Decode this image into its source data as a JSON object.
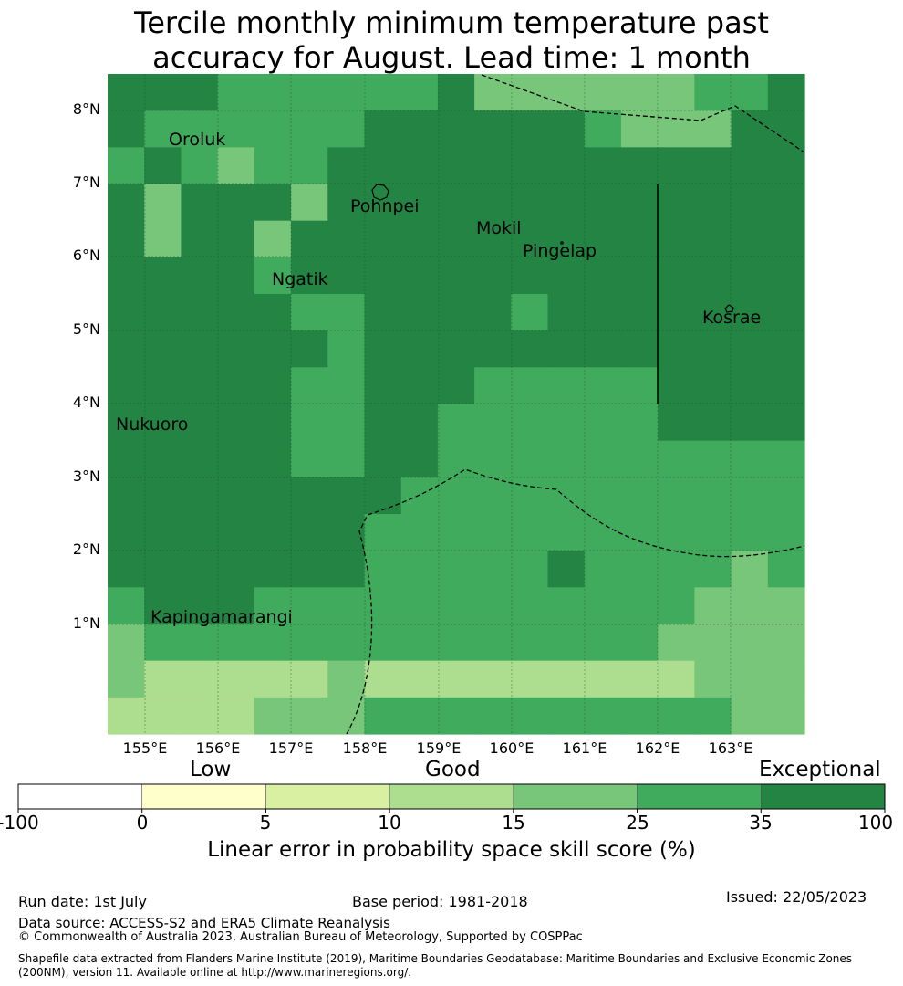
{
  "title": {
    "line1": "Tercile monthly minimum temperature past",
    "line2": "accuracy for August. Lead time: 1 month"
  },
  "map": {
    "lat_labels": [
      "8°N",
      "7°N",
      "6°N",
      "5°N",
      "4°N",
      "3°N",
      "2°N",
      "1°N"
    ],
    "lon_labels": [
      "155°E",
      "156°E",
      "157°E",
      "158°E",
      "159°E",
      "160°E",
      "161°E",
      "162°E",
      "163°E"
    ],
    "places": {
      "oroluk": "Oroluk",
      "pohnpei": "Pohnpei",
      "mokil": "Mokil",
      "pingelap": "Pingelap",
      "ngatik": "Ngatik",
      "kosrae": "Kosrae",
      "nukuoro": "Nukuoro",
      "kapingamarangi": "Kapingamarangi"
    },
    "grid": {
      "columns": 19,
      "rows": 18,
      "class_values": [
        "aaaccccccaddddddcca",
        "accccccaaaaaacdddaa",
        "bacdbbaaaaaaaaaaaaa",
        "adaaadaaaaaaaaaaaaa",
        "adaadaaaaaaaaaaaaaa",
        "aaaacaaaaaaaaaaaaaa",
        "aaaaaccaaaacaaaaaaa",
        "aaaaaacaaaaaaaaaaaa",
        "aaaaaccaaacccccaaaa",
        "aaaaaccaaccccccaaaa",
        "aaaaaccaacccccccccc",
        "aaaaaaaaccccccccccc",
        "aaaaaaacccccccccccc",
        "aaaaaaacccccaccccdc",
        "caaaccccccccccccddd",
        "dccccccccbcccccdddd",
        "deeeeedeeeeeeeeeddd",
        "eeeedddbbbbbbbbbbdd"
      ],
      "class_legend": {
        "a": "35 to 100",
        "b": "25 to 35",
        "c": "25 to 35",
        "d": "15 to 25",
        "e": "10 to 15"
      }
    }
  },
  "colorbar": {
    "categories": [
      "Low",
      "Good",
      "Exceptional"
    ],
    "ticks": [
      "-100",
      "0",
      "5",
      "10",
      "15",
      "25",
      "35",
      "100"
    ],
    "colors": [
      "#ffffff",
      "#ffffcc",
      "#d9f0a3",
      "#addd8e",
      "#78c679",
      "#41ab5d",
      "#238443"
    ],
    "label": "Linear error in probability space skill score (%)"
  },
  "footer": {
    "run_date": "Run date: 1st July",
    "base_period": "Base period: 1981-2018",
    "issued": "Issued: 22/05/2023",
    "data_source": "Data source: ACCESS-S2 and ERA5 Climate Reanalysis",
    "copyright": "© Commonwealth of Australia 2023, Australian Bureau of Meteorology, Supported by COSPPac",
    "shapefile": "Shapefile data extracted from Flanders Marine Institute (2019), Maritime Boundaries Geodatabase: Maritime Boundaries and Exclusive Economic Zones (200NM), version 11. Available online at http://www.marineregions.org/."
  }
}
